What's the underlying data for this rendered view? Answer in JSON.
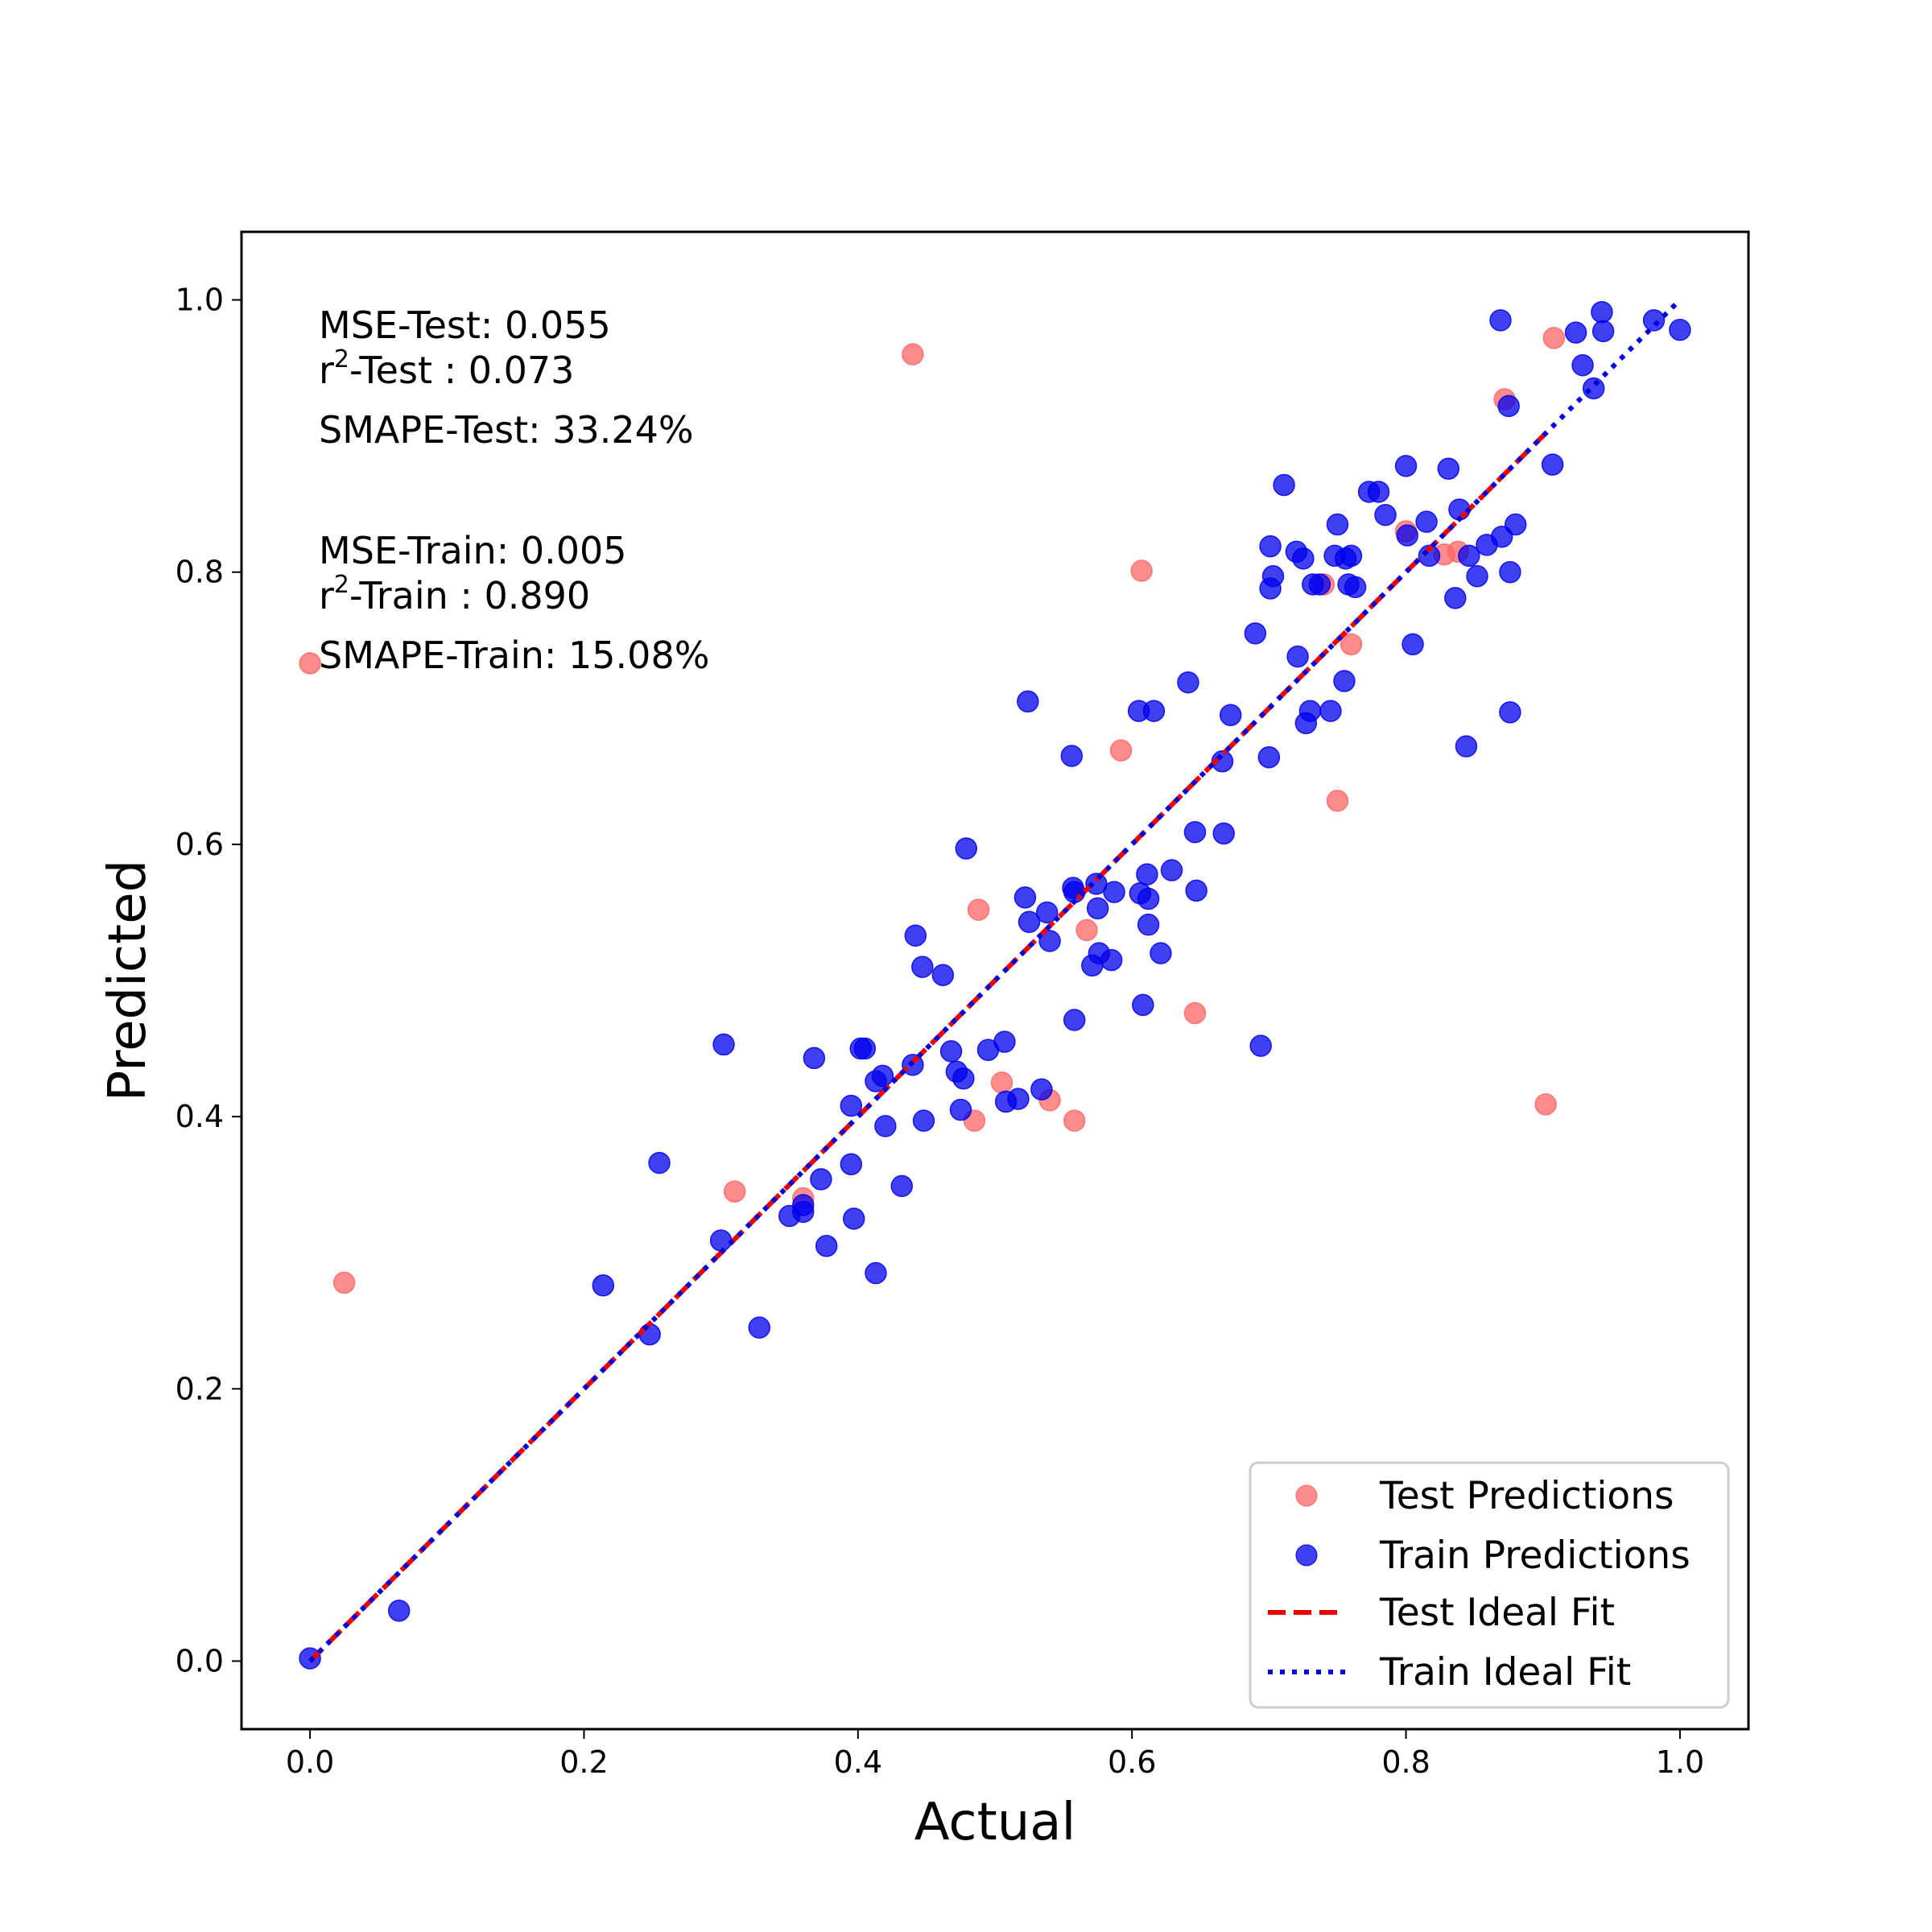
{
  "chart_data": {
    "type": "scatter",
    "title": "",
    "xlabel": "Actual",
    "ylabel": "Predicted",
    "xlim": [
      -0.05,
      1.05
    ],
    "ylim": [
      -0.05,
      1.05
    ],
    "xticks": [
      "0.0",
      "0.2",
      "0.4",
      "0.6",
      "0.8",
      "1.0"
    ],
    "yticks": [
      "0.0",
      "0.2",
      "0.4",
      "0.6",
      "0.8",
      "1.0"
    ],
    "grid": false,
    "legend_position": "bottom-right",
    "annotations": {
      "mse_test": "MSE-Test: 0.055",
      "r2_test_prefix": "r",
      "r2_test_sup": "2",
      "r2_test_suffix": "-Test : 0.073",
      "smape_test": "SMAPE-Test: 33.24%",
      "mse_train": "MSE-Train: 0.005",
      "r2_train_prefix": "r",
      "r2_train_sup": "2",
      "r2_train_suffix": "-Train : 0.890",
      "smape_train": "SMAPE-Train: 15.08%"
    },
    "series": [
      {
        "name": "Test Predictions",
        "kind": "scatter",
        "color": "#ff6666",
        "points": [
          [
            0.0,
            0.733
          ],
          [
            0.025,
            0.278
          ],
          [
            0.31,
            0.345
          ],
          [
            0.36,
            0.34
          ],
          [
            0.44,
            0.96
          ],
          [
            0.485,
            0.397
          ],
          [
            0.488,
            0.552
          ],
          [
            0.505,
            0.425
          ],
          [
            0.54,
            0.412
          ],
          [
            0.558,
            0.397
          ],
          [
            0.567,
            0.537
          ],
          [
            0.592,
            0.669
          ],
          [
            0.607,
            0.801
          ],
          [
            0.646,
            0.476
          ],
          [
            0.74,
            0.791
          ],
          [
            0.75,
            0.632
          ],
          [
            0.76,
            0.747
          ],
          [
            0.8,
            0.83
          ],
          [
            0.828,
            0.813
          ],
          [
            0.838,
            0.815
          ],
          [
            0.872,
            0.927
          ],
          [
            0.902,
            0.409
          ],
          [
            0.908,
            0.972
          ]
        ]
      },
      {
        "name": "Train Predictions",
        "kind": "scatter",
        "color": "#0000ee",
        "points": [
          [
            0.0,
            0.002
          ],
          [
            0.065,
            0.037
          ],
          [
            0.214,
            0.276
          ],
          [
            0.248,
            0.24
          ],
          [
            0.255,
            0.366
          ],
          [
            0.3,
            0.309
          ],
          [
            0.302,
            0.453
          ],
          [
            0.328,
            0.245
          ],
          [
            0.35,
            0.327
          ],
          [
            0.36,
            0.335
          ],
          [
            0.36,
            0.33
          ],
          [
            0.368,
            0.443
          ],
          [
            0.373,
            0.354
          ],
          [
            0.377,
            0.305
          ],
          [
            0.395,
            0.408
          ],
          [
            0.395,
            0.365
          ],
          [
            0.397,
            0.325
          ],
          [
            0.402,
            0.45
          ],
          [
            0.405,
            0.45
          ],
          [
            0.413,
            0.426
          ],
          [
            0.413,
            0.285
          ],
          [
            0.418,
            0.43
          ],
          [
            0.42,
            0.393
          ],
          [
            0.432,
            0.349
          ],
          [
            0.44,
            0.438
          ],
          [
            0.442,
            0.533
          ],
          [
            0.447,
            0.51
          ],
          [
            0.448,
            0.397
          ],
          [
            0.462,
            0.504
          ],
          [
            0.468,
            0.448
          ],
          [
            0.472,
            0.433
          ],
          [
            0.475,
            0.405
          ],
          [
            0.477,
            0.428
          ],
          [
            0.479,
            0.597
          ],
          [
            0.495,
            0.449
          ],
          [
            0.507,
            0.455
          ],
          [
            0.508,
            0.411
          ],
          [
            0.517,
            0.413
          ],
          [
            0.522,
            0.561
          ],
          [
            0.524,
            0.705
          ],
          [
            0.525,
            0.543
          ],
          [
            0.534,
            0.42
          ],
          [
            0.538,
            0.55
          ],
          [
            0.54,
            0.529
          ],
          [
            0.556,
            0.665
          ],
          [
            0.557,
            0.568
          ],
          [
            0.558,
            0.565
          ],
          [
            0.558,
            0.471
          ],
          [
            0.571,
            0.511
          ],
          [
            0.574,
            0.571
          ],
          [
            0.575,
            0.553
          ],
          [
            0.576,
            0.52
          ],
          [
            0.585,
            0.515
          ],
          [
            0.587,
            0.565
          ],
          [
            0.605,
            0.698
          ],
          [
            0.606,
            0.564
          ],
          [
            0.608,
            0.482
          ],
          [
            0.611,
            0.578
          ],
          [
            0.612,
            0.56
          ],
          [
            0.612,
            0.541
          ],
          [
            0.616,
            0.698
          ],
          [
            0.621,
            0.52
          ],
          [
            0.629,
            0.581
          ],
          [
            0.641,
            0.719
          ],
          [
            0.646,
            0.609
          ],
          [
            0.647,
            0.566
          ],
          [
            0.666,
            0.661
          ],
          [
            0.667,
            0.608
          ],
          [
            0.672,
            0.695
          ],
          [
            0.69,
            0.755
          ],
          [
            0.694,
            0.452
          ],
          [
            0.7,
            0.664
          ],
          [
            0.701,
            0.788
          ],
          [
            0.701,
            0.819
          ],
          [
            0.703,
            0.797
          ],
          [
            0.711,
            0.864
          ],
          [
            0.72,
            0.815
          ],
          [
            0.721,
            0.738
          ],
          [
            0.725,
            0.81
          ],
          [
            0.727,
            0.689
          ],
          [
            0.73,
            0.698
          ],
          [
            0.732,
            0.791
          ],
          [
            0.737,
            0.791
          ],
          [
            0.745,
            0.698
          ],
          [
            0.748,
            0.812
          ],
          [
            0.75,
            0.835
          ],
          [
            0.755,
            0.72
          ],
          [
            0.756,
            0.81
          ],
          [
            0.758,
            0.791
          ],
          [
            0.76,
            0.812
          ],
          [
            0.763,
            0.789
          ],
          [
            0.773,
            0.859
          ],
          [
            0.78,
            0.859
          ],
          [
            0.785,
            0.842
          ],
          [
            0.8,
            0.878
          ],
          [
            0.801,
            0.827
          ],
          [
            0.805,
            0.747
          ],
          [
            0.815,
            0.837
          ],
          [
            0.817,
            0.812
          ],
          [
            0.831,
            0.876
          ],
          [
            0.836,
            0.781
          ],
          [
            0.839,
            0.846
          ],
          [
            0.844,
            0.672
          ],
          [
            0.846,
            0.812
          ],
          [
            0.852,
            0.797
          ],
          [
            0.859,
            0.82
          ],
          [
            0.869,
            0.985
          ],
          [
            0.87,
            0.826
          ],
          [
            0.875,
            0.922
          ],
          [
            0.876,
            0.697
          ],
          [
            0.876,
            0.8
          ],
          [
            0.88,
            0.835
          ],
          [
            0.907,
            0.879
          ],
          [
            0.924,
            0.976
          ],
          [
            0.929,
            0.952
          ],
          [
            0.937,
            0.935
          ],
          [
            0.943,
            0.991
          ],
          [
            0.944,
            0.977
          ],
          [
            0.981,
            0.985
          ],
          [
            1.0,
            0.978
          ]
        ]
      },
      {
        "name": "Test Ideal Fit",
        "kind": "line",
        "style": "dashed",
        "color": "#ee0000",
        "x": [
          0.0,
          0.908
        ],
        "y": [
          0.0,
          0.908
        ]
      },
      {
        "name": "Train Ideal Fit",
        "kind": "line",
        "style": "dotted",
        "color": "#0000dd",
        "x": [
          0.0,
          1.0
        ],
        "y": [
          0.0,
          1.0
        ]
      }
    ]
  }
}
